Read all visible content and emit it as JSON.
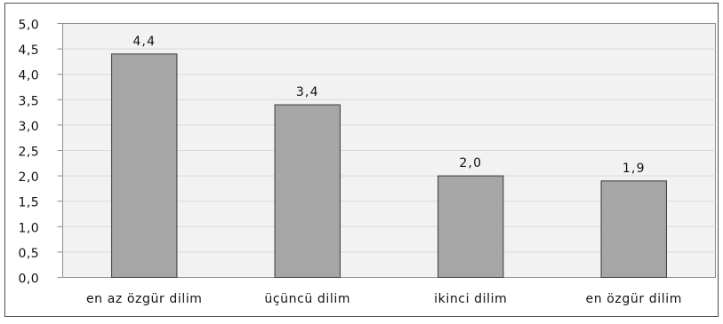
{
  "chart_data": {
    "type": "bar",
    "categories": [
      "en az özgür dilim",
      "üçüncü dilim",
      "ikinci dilim",
      "en özgür dilim"
    ],
    "values": [
      4.4,
      3.4,
      2.0,
      1.9
    ],
    "value_labels": [
      "4,4",
      "3,4",
      "2,0",
      "1,9"
    ],
    "ylim": [
      0,
      5
    ],
    "y_ticks": [
      0,
      0.5,
      1,
      1.5,
      2,
      2.5,
      3,
      3.5,
      4,
      4.5,
      5
    ],
    "y_tick_labels": [
      "0,0",
      "0,5",
      "1,0",
      "1,5",
      "2,0",
      "2,5",
      "3,0",
      "3,5",
      "4,0",
      "4,5",
      "5,0"
    ],
    "grid": true,
    "show_legend": false
  },
  "colors": {
    "bar_fill": "#a6a6a6",
    "bar_stroke": "#3a3a3a",
    "plot_background": "#f2f2f2",
    "plot_border": "#8c8c8c",
    "gridline": "#d9d9d9",
    "frame_border": "#4d4d4d"
  }
}
